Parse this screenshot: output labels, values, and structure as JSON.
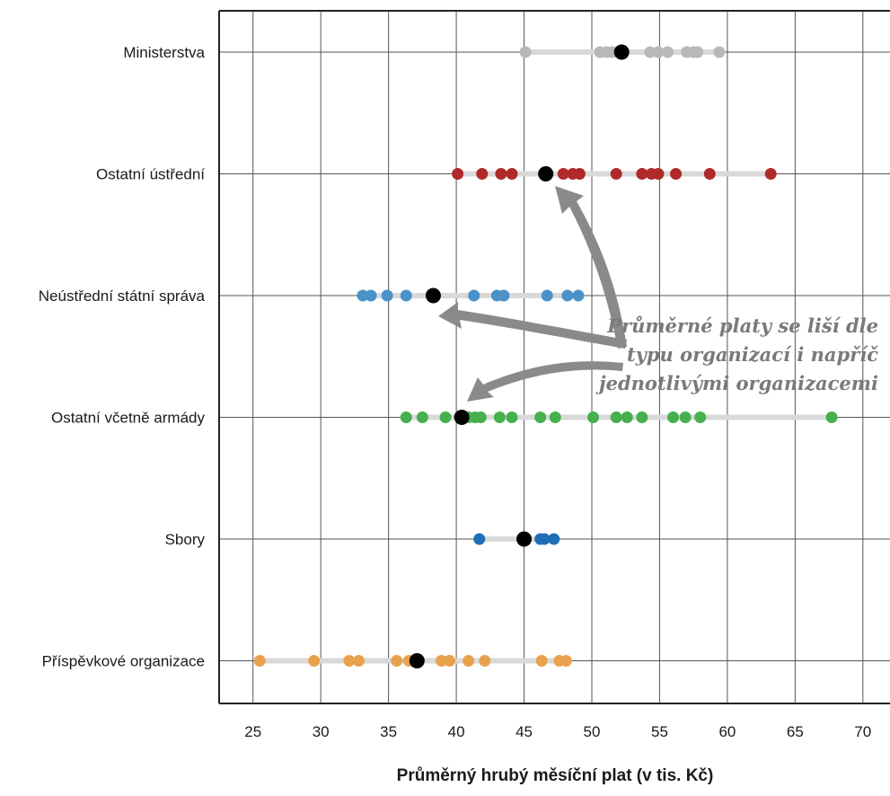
{
  "chart_data": {
    "type": "scatter",
    "title": "",
    "xlabel": "Průměrný hrubý měsíční plat (v tis. Kč)",
    "ylabel": "",
    "xlim": [
      22.5,
      72
    ],
    "xticks": [
      25,
      30,
      35,
      40,
      45,
      50,
      55,
      60,
      65,
      70
    ],
    "grid": true,
    "legend": "none",
    "categories": [
      "Ministerstva",
      "Ostatní ústřední",
      "Neústřední státní správa",
      "Ostatní včetně armády",
      "Sbory",
      "Příspěvkové organizace"
    ],
    "series": [
      {
        "color": "#b8b8b8",
        "points": [
          45.1,
          50.6,
          51.1,
          51.5,
          51.9,
          52.3,
          54.3,
          54.9,
          55.6,
          57.0,
          57.5,
          57.8,
          59.4
        ],
        "mean": 52.2
      },
      {
        "color": "#b02a2a",
        "points": [
          40.1,
          41.9,
          43.3,
          44.1,
          47.9,
          48.6,
          49.1,
          51.8,
          53.7,
          54.4,
          54.9,
          56.2,
          58.7,
          63.2
        ],
        "mean": 46.6
      },
      {
        "color": "#4a92c8",
        "points": [
          33.1,
          33.7,
          34.9,
          36.3,
          41.3,
          43.0,
          43.5,
          46.7,
          48.2,
          49.0
        ],
        "mean": 38.3
      },
      {
        "color": "#45b04d",
        "points": [
          36.3,
          37.5,
          39.2,
          40.9,
          41.4,
          41.8,
          43.2,
          44.1,
          46.2,
          47.3,
          50.1,
          51.8,
          52.6,
          53.7,
          56.0,
          56.9,
          58.0,
          67.7
        ],
        "mean": 40.4
      },
      {
        "color": "#1f6fb8",
        "points": [
          41.7,
          46.2,
          46.5,
          47.2
        ],
        "mean": 45.0
      },
      {
        "color": "#e8a24e",
        "points": [
          25.5,
          29.5,
          32.1,
          32.8,
          35.6,
          36.5,
          38.9,
          39.5,
          40.9,
          42.1,
          46.3,
          47.6,
          48.1
        ],
        "mean": 37.1
      }
    ],
    "mean_color": "#000000",
    "track_color": "#d9d9d9",
    "annotation": {
      "lines": [
        "Průměrné platy se liší dle",
        "typu organizací i napříč",
        "jednotlivými organizacemi"
      ],
      "color": "#7a7a7a"
    }
  }
}
